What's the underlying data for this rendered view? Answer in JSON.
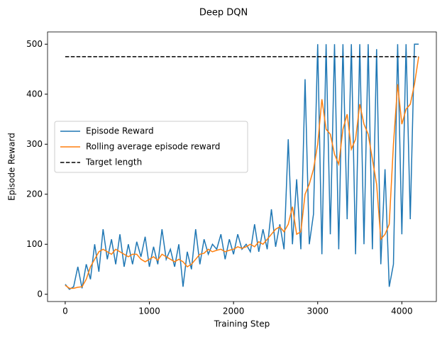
{
  "chart_data": {
    "type": "line",
    "title": "Deep DQN",
    "x_label": "Training Step",
    "y_label": "Episode Reward",
    "x": [
      0,
      50,
      100,
      150,
      200,
      250,
      300,
      350,
      400,
      450,
      500,
      550,
      600,
      650,
      700,
      750,
      800,
      850,
      900,
      950,
      1000,
      1050,
      1100,
      1150,
      1200,
      1250,
      1300,
      1350,
      1400,
      1450,
      1500,
      1550,
      1600,
      1650,
      1700,
      1750,
      1800,
      1850,
      1900,
      1950,
      2000,
      2050,
      2100,
      2150,
      2200,
      2250,
      2300,
      2350,
      2400,
      2450,
      2500,
      2550,
      2600,
      2650,
      2700,
      2750,
      2800,
      2850,
      2900,
      2950,
      3000,
      3050,
      3100,
      3150,
      3200,
      3250,
      3300,
      3350,
      3400,
      3450,
      3500,
      3550,
      3600,
      3650,
      3700,
      3750,
      3800,
      3850,
      3900,
      3950,
      4000,
      4050,
      4100,
      4150,
      4200
    ],
    "series": [
      {
        "name": "Episode Reward",
        "color": "#1f77b4",
        "linestyle": "solid",
        "values": [
          20,
          10,
          15,
          55,
          12,
          60,
          30,
          100,
          45,
          130,
          70,
          110,
          60,
          120,
          55,
          100,
          60,
          105,
          75,
          115,
          55,
          95,
          60,
          130,
          70,
          90,
          55,
          100,
          15,
          85,
          50,
          130,
          60,
          110,
          80,
          100,
          90,
          120,
          70,
          110,
          80,
          120,
          90,
          100,
          85,
          140,
          85,
          130,
          90,
          170,
          95,
          140,
          90,
          310,
          100,
          230,
          90,
          430,
          100,
          160,
          500,
          80,
          500,
          120,
          500,
          90,
          500,
          150,
          500,
          80,
          500,
          100,
          500,
          90,
          490,
          60,
          250,
          15,
          60,
          500,
          120,
          500,
          150,
          500,
          500
        ]
      },
      {
        "name": "Rolling average episode reward",
        "color": "#ff7f0e",
        "linestyle": "solid",
        "values": [
          18,
          12,
          12,
          14,
          15,
          30,
          55,
          70,
          85,
          90,
          85,
          80,
          90,
          85,
          80,
          75,
          80,
          80,
          70,
          65,
          70,
          75,
          68,
          80,
          75,
          70,
          65,
          70,
          65,
          55,
          60,
          70,
          80,
          82,
          90,
          85,
          88,
          90,
          85,
          88,
          90,
          95,
          92,
          95,
          100,
          95,
          105,
          100,
          110,
          120,
          130,
          135,
          125,
          140,
          175,
          120,
          125,
          200,
          220,
          250,
          300,
          390,
          330,
          320,
          280,
          260,
          330,
          360,
          290,
          310,
          380,
          340,
          320,
          270,
          220,
          110,
          120,
          140,
          300,
          420,
          340,
          370,
          380,
          420,
          475
        ]
      },
      {
        "name": "Target length",
        "color": "#000000",
        "linestyle": "dashed",
        "values": [
          475,
          475,
          475,
          475,
          475,
          475,
          475,
          475,
          475,
          475,
          475,
          475,
          475,
          475,
          475,
          475,
          475,
          475,
          475,
          475,
          475,
          475,
          475,
          475,
          475,
          475,
          475,
          475,
          475,
          475,
          475,
          475,
          475,
          475,
          475,
          475,
          475,
          475,
          475,
          475,
          475,
          475,
          475,
          475,
          475,
          475,
          475,
          475,
          475,
          475,
          475,
          475,
          475,
          475,
          475,
          475,
          475,
          475,
          475,
          475,
          475,
          475,
          475,
          475,
          475,
          475,
          475,
          475,
          475,
          475,
          475,
          475,
          475,
          475,
          475,
          475,
          475,
          475,
          475,
          475,
          475,
          475,
          475,
          475,
          475
        ]
      }
    ],
    "xlim": [
      -210,
      4410
    ],
    "ylim": [
      -14.5,
      524.5
    ],
    "xticks": [
      0,
      1000,
      2000,
      3000,
      4000
    ],
    "yticks": [
      0,
      100,
      200,
      300,
      400,
      500
    ],
    "grid": false,
    "legend": "center left"
  }
}
